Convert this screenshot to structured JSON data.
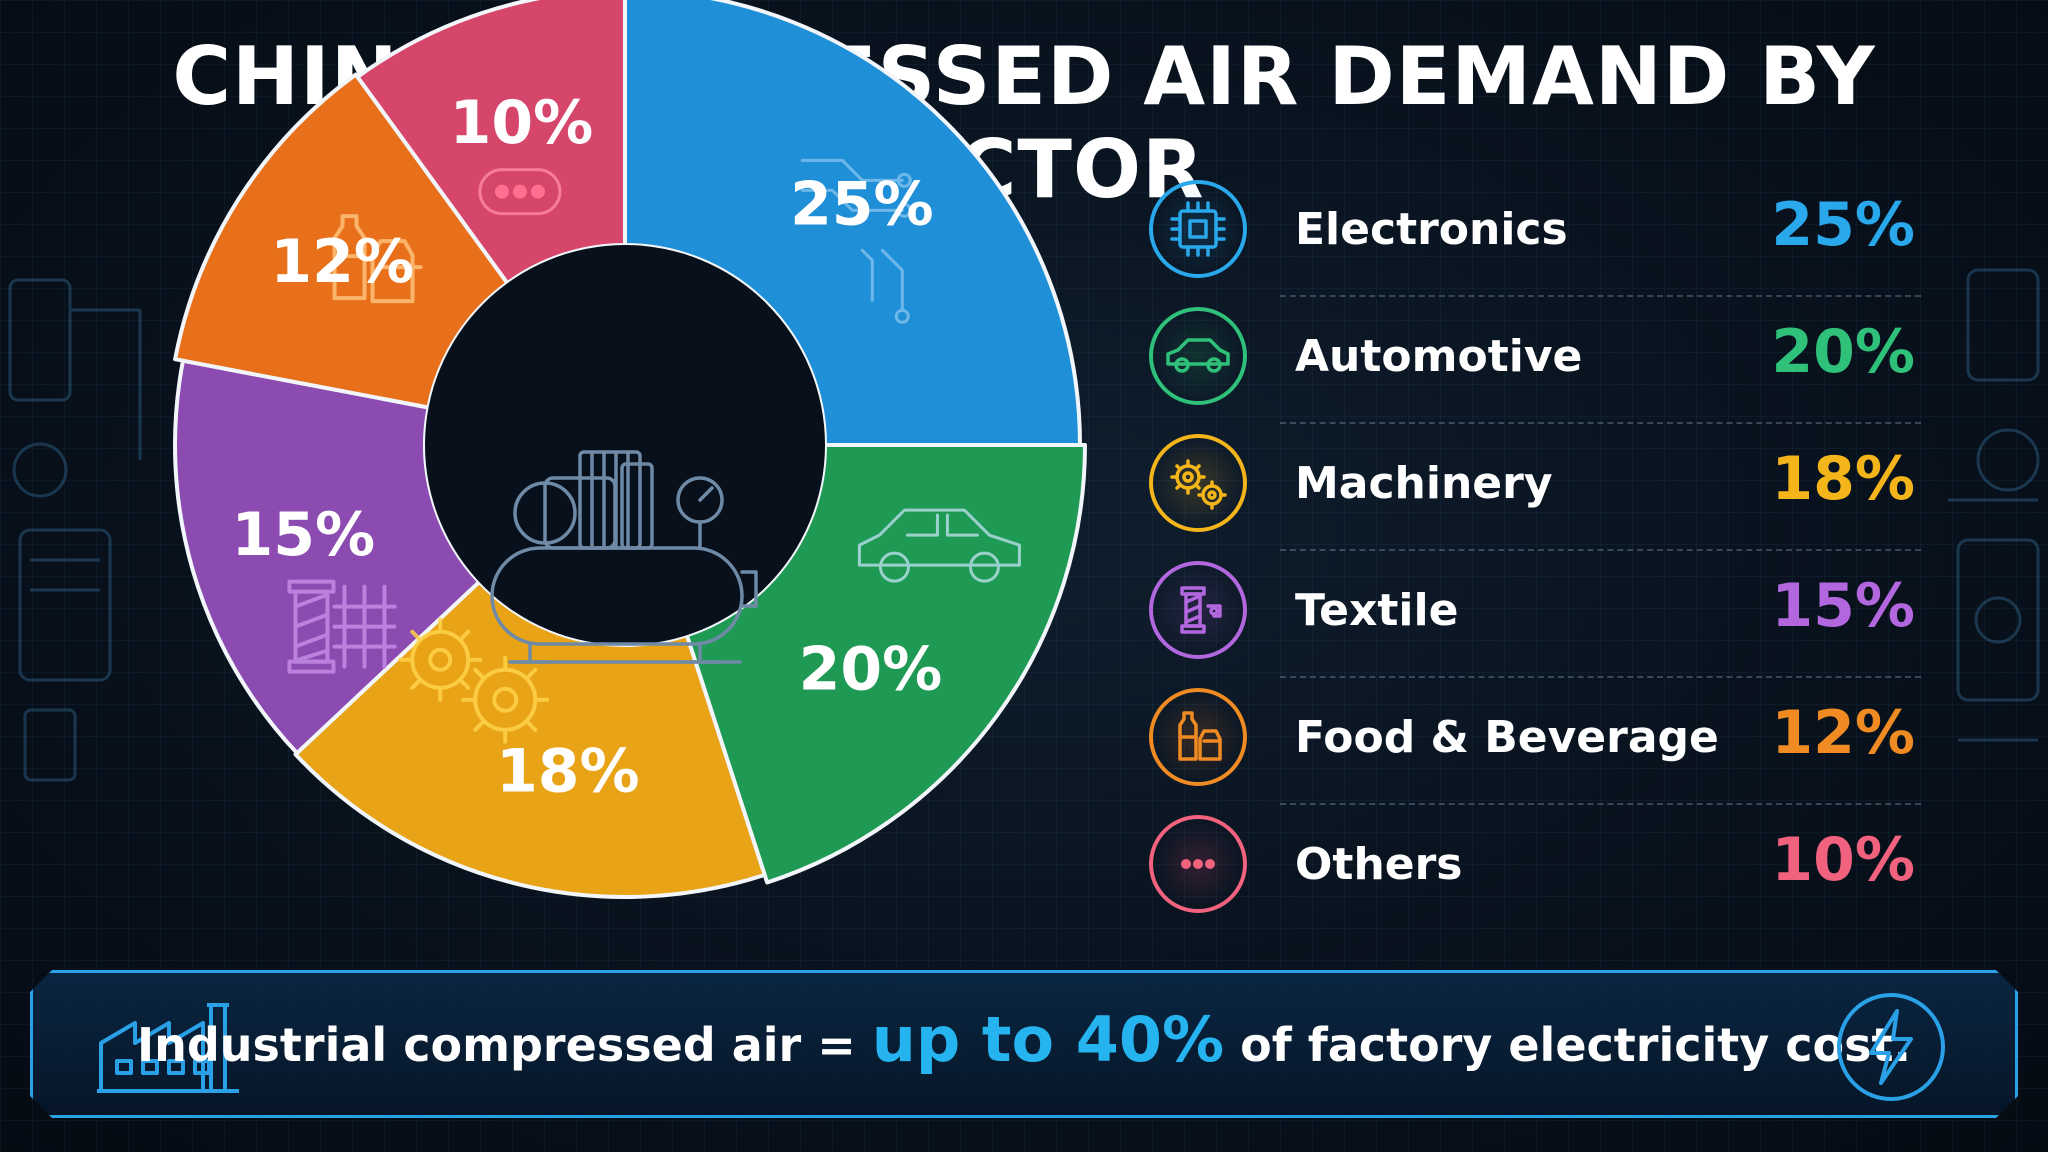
{
  "title": "CHINA COMPRESSED AIR DEMAND BY SECTOR",
  "chart_data": {
    "type": "pie",
    "variant": "donut",
    "categories": [
      "Electronics",
      "Automotive",
      "Machinery",
      "Textile",
      "Food & Beverage",
      "Others"
    ],
    "values": [
      25,
      20,
      18,
      15,
      12,
      10
    ],
    "labels": [
      "25%",
      "20%",
      "18%",
      "15%",
      "12%",
      "10%"
    ],
    "colors": [
      "#1f8fd8",
      "#1f9a55",
      "#e8a317",
      "#8b4bb0",
      "#e8701a",
      "#d6456a"
    ],
    "label_colors": [
      "#2aa8ec",
      "#2fc07a",
      "#f4b51a",
      "#b267df",
      "#f08a22",
      "#f0627d"
    ],
    "icons": [
      "chip-icon",
      "car-icon",
      "gears-icon",
      "spool-icon",
      "bottle-icon",
      "dots-icon"
    ],
    "center_icon": "air-compressor-icon",
    "legend_placement": "right"
  },
  "banner": {
    "text_before": "Industrial compressed air = ",
    "highlight": "up to 40%",
    "text_after": " of factory electricity cost.",
    "left_icon": "factory-icon",
    "right_icon": "lightning-bolt-icon"
  }
}
